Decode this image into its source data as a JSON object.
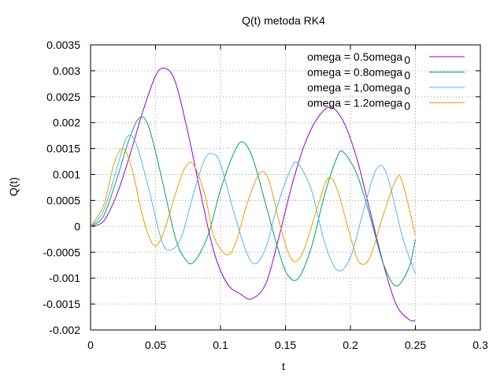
{
  "chart_data": {
    "type": "line",
    "title": "Q(t) metoda RK4",
    "xlabel": "t",
    "ylabel": "Q(t)",
    "xlim": [
      0,
      0.3
    ],
    "ylim": [
      -0.002,
      0.0035
    ],
    "x_ticks": [
      "0",
      "0.05",
      "0.1",
      "0.15",
      "0.2",
      "0.25",
      "0.3"
    ],
    "y_ticks": [
      "-0.002",
      "-0.0015",
      "-0.001",
      "-0.0005",
      "0",
      "0.0005",
      "0.001",
      "0.0015",
      "0.002",
      "0.0025",
      "0.003",
      "0.0035"
    ],
    "grid": true,
    "legend_position": "top-right",
    "series": [
      {
        "name": "omega = 0.5omega",
        "name_subscript": "0",
        "color": "#9400d3",
        "points": [
          [
            0,
            0
          ],
          [
            0.01,
            0.0001
          ],
          [
            0.02,
            0.0006
          ],
          [
            0.03,
            0.00135
          ],
          [
            0.04,
            0.0022
          ],
          [
            0.05,
            0.0029
          ],
          [
            0.057,
            0.00305
          ],
          [
            0.065,
            0.0028
          ],
          [
            0.075,
            0.0018
          ],
          [
            0.085,
            0.0006
          ],
          [
            0.095,
            -0.0005
          ],
          [
            0.105,
            -0.0011
          ],
          [
            0.115,
            -0.0013
          ],
          [
            0.124,
            -0.0014
          ],
          [
            0.135,
            -0.0011
          ],
          [
            0.145,
            -0.0002
          ],
          [
            0.155,
            0.0008
          ],
          [
            0.165,
            0.0016
          ],
          [
            0.175,
            0.0021
          ],
          [
            0.185,
            0.0023
          ],
          [
            0.195,
            0.002
          ],
          [
            0.205,
            0.0013
          ],
          [
            0.215,
            0.0003
          ],
          [
            0.225,
            -0.0007
          ],
          [
            0.235,
            -0.0015
          ],
          [
            0.245,
            -0.0018
          ],
          [
            0.25,
            -0.00182
          ]
        ]
      },
      {
        "name": "omega = 0.8omega",
        "name_subscript": "0",
        "color": "#009e73",
        "points": [
          [
            0,
            0
          ],
          [
            0.01,
            0.0002
          ],
          [
            0.02,
            0.0009
          ],
          [
            0.03,
            0.0017
          ],
          [
            0.038,
            0.0021
          ],
          [
            0.045,
            0.0019
          ],
          [
            0.055,
            0.0009
          ],
          [
            0.065,
            -0.0002
          ],
          [
            0.072,
            -0.0006
          ],
          [
            0.079,
            -0.0007
          ],
          [
            0.09,
            -0.0002
          ],
          [
            0.1,
            0.0007
          ],
          [
            0.11,
            0.0014
          ],
          [
            0.117,
            0.00163
          ],
          [
            0.125,
            0.0013
          ],
          [
            0.135,
            0.0004
          ],
          [
            0.145,
            -0.0005
          ],
          [
            0.152,
            -0.00095
          ],
          [
            0.16,
            -0.001
          ],
          [
            0.17,
            -0.0004
          ],
          [
            0.18,
            0.0006
          ],
          [
            0.19,
            0.00135
          ],
          [
            0.195,
            0.00142
          ],
          [
            0.205,
            0.001
          ],
          [
            0.215,
            0.0002
          ],
          [
            0.225,
            -0.0007
          ],
          [
            0.235,
            -0.00115
          ],
          [
            0.245,
            -0.0008
          ],
          [
            0.25,
            -0.00025
          ]
        ]
      },
      {
        "name": "omega = 1,0omega",
        "name_subscript": "0",
        "color": "#56b4e9",
        "points": [
          [
            0,
            0
          ],
          [
            0.01,
            0.0003
          ],
          [
            0.02,
            0.0011
          ],
          [
            0.028,
            0.00172
          ],
          [
            0.035,
            0.0016
          ],
          [
            0.045,
            0.0007
          ],
          [
            0.055,
            -0.0003
          ],
          [
            0.062,
            -0.00045
          ],
          [
            0.07,
            -0.0002
          ],
          [
            0.08,
            0.0007
          ],
          [
            0.088,
            0.0013
          ],
          [
            0.094,
            0.0014
          ],
          [
            0.1,
            0.0012
          ],
          [
            0.11,
            0.0003
          ],
          [
            0.12,
            -0.0005
          ],
          [
            0.127,
            -0.00072
          ],
          [
            0.135,
            -0.0004
          ],
          [
            0.145,
            0.0005
          ],
          [
            0.155,
            0.00115
          ],
          [
            0.16,
            0.0012
          ],
          [
            0.17,
            0.0007
          ],
          [
            0.18,
            -0.0003
          ],
          [
            0.19,
            -0.00085
          ],
          [
            0.2,
            -0.0006
          ],
          [
            0.21,
            0.0003
          ],
          [
            0.22,
            0.0011
          ],
          [
            0.228,
            0.001
          ],
          [
            0.24,
            -0.0002
          ],
          [
            0.25,
            -0.00092
          ]
        ]
      },
      {
        "name": "omega = 1.2omega",
        "name_subscript": "0",
        "color": "#e69f00",
        "points": [
          [
            0,
            0
          ],
          [
            0.01,
            0.0004
          ],
          [
            0.018,
            0.0012
          ],
          [
            0.025,
            0.0015
          ],
          [
            0.032,
            0.0011
          ],
          [
            0.04,
            0.0002
          ],
          [
            0.048,
            -0.00035
          ],
          [
            0.055,
            -0.0002
          ],
          [
            0.065,
            0.0006
          ],
          [
            0.072,
            0.0011
          ],
          [
            0.079,
            0.0012
          ],
          [
            0.088,
            0.0006
          ],
          [
            0.095,
            -0.0002
          ],
          [
            0.105,
            -0.00055
          ],
          [
            0.112,
            -0.0003
          ],
          [
            0.12,
            0.0004
          ],
          [
            0.13,
            0.00102
          ],
          [
            0.137,
            0.0009
          ],
          [
            0.145,
            0.0001
          ],
          [
            0.152,
            -0.0005
          ],
          [
            0.158,
            -0.00068
          ],
          [
            0.165,
            -0.0004
          ],
          [
            0.175,
            0.0004
          ],
          [
            0.183,
            0.00093
          ],
          [
            0.19,
            0.0007
          ],
          [
            0.2,
            -0.0002
          ],
          [
            0.207,
            -0.0007
          ],
          [
            0.215,
            -0.0006
          ],
          [
            0.225,
            0.0002
          ],
          [
            0.235,
            0.0009
          ],
          [
            0.24,
            0.00085
          ],
          [
            0.25,
            -0.00018
          ]
        ]
      }
    ]
  }
}
